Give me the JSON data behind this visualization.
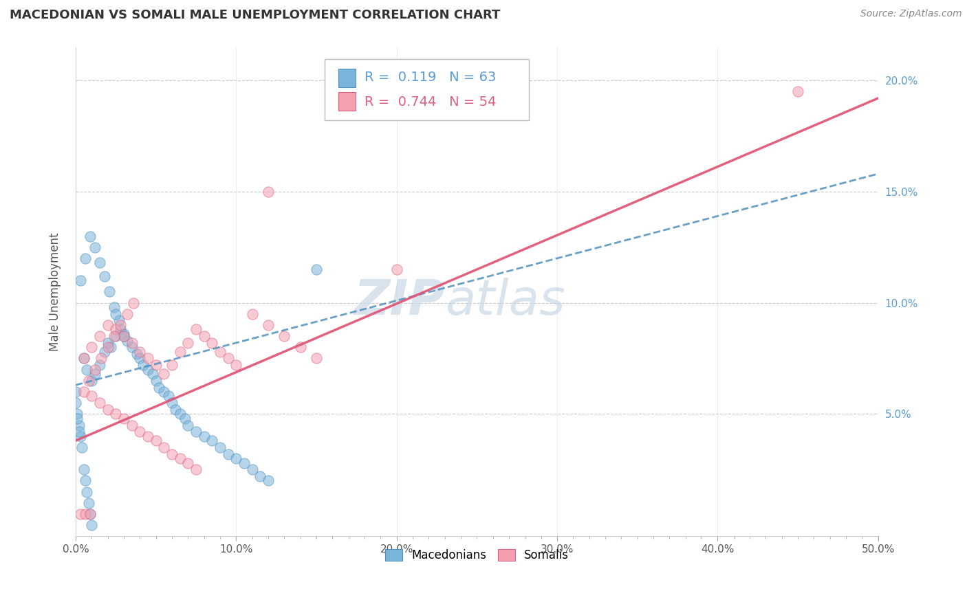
{
  "title": "MACEDONIAN VS SOMALI MALE UNEMPLOYMENT CORRELATION CHART",
  "source": "Source: ZipAtlas.com",
  "ylabel": "Male Unemployment",
  "xlim": [
    0.0,
    0.5
  ],
  "ylim": [
    -0.005,
    0.215
  ],
  "xtick_labels": [
    "0.0%",
    "",
    "",
    "",
    "",
    "",
    "",
    "",
    "",
    "",
    "10.0%",
    "",
    "",
    "",
    "",
    "",
    "",
    "",
    "",
    "",
    "20.0%",
    "",
    "",
    "",
    "",
    "",
    "",
    "",
    "",
    "",
    "30.0%",
    "",
    "",
    "",
    "",
    "",
    "",
    "",
    "",
    "",
    "40.0%",
    "",
    "",
    "",
    "",
    "",
    "",
    "",
    "",
    "",
    "50.0%"
  ],
  "xtick_values": [
    0.0,
    0.01,
    0.02,
    0.03,
    0.04,
    0.05,
    0.06,
    0.07,
    0.08,
    0.09,
    0.1,
    0.11,
    0.12,
    0.13,
    0.14,
    0.15,
    0.16,
    0.17,
    0.18,
    0.19,
    0.2,
    0.21,
    0.22,
    0.23,
    0.24,
    0.25,
    0.26,
    0.27,
    0.28,
    0.29,
    0.3,
    0.31,
    0.32,
    0.33,
    0.34,
    0.35,
    0.36,
    0.37,
    0.38,
    0.39,
    0.4,
    0.41,
    0.42,
    0.43,
    0.44,
    0.45,
    0.46,
    0.47,
    0.48,
    0.49,
    0.5
  ],
  "xtick_major_labels": [
    "0.0%",
    "10.0%",
    "20.0%",
    "30.0%",
    "40.0%",
    "50.0%"
  ],
  "xtick_major_values": [
    0.0,
    0.1,
    0.2,
    0.3,
    0.4,
    0.5
  ],
  "ytick_labels": [
    "5.0%",
    "10.0%",
    "15.0%",
    "20.0%"
  ],
  "ytick_values": [
    0.05,
    0.1,
    0.15,
    0.2
  ],
  "macedonian_color": "#7ab4db",
  "somali_color": "#f4a0b0",
  "macedonian_edge_color": "#5090bb",
  "somali_edge_color": "#e06080",
  "watermark_zip": "ZIP",
  "watermark_atlas": "atlas",
  "legend_r_macedonian": "0.119",
  "legend_n_macedonian": "63",
  "legend_r_somali": "0.744",
  "legend_n_somali": "54",
  "mac_trend_x0": 0.0,
  "mac_trend_x1": 0.5,
  "mac_trend_y0": 0.063,
  "mac_trend_y1": 0.158,
  "som_trend_x0": 0.0,
  "som_trend_x1": 0.5,
  "som_trend_y0": 0.038,
  "som_trend_y1": 0.192,
  "grid_color": "#bbbbbb",
  "scatter_size": 120,
  "scatter_alpha": 0.55,
  "macedonian_x": [
    0.005,
    0.007,
    0.01,
    0.012,
    0.015,
    0.018,
    0.02,
    0.022,
    0.025,
    0.028,
    0.03,
    0.032,
    0.035,
    0.038,
    0.04,
    0.042,
    0.045,
    0.048,
    0.05,
    0.052,
    0.055,
    0.058,
    0.06,
    0.062,
    0.065,
    0.068,
    0.07,
    0.075,
    0.08,
    0.085,
    0.09,
    0.095,
    0.1,
    0.105,
    0.11,
    0.115,
    0.12,
    0.003,
    0.006,
    0.009,
    0.012,
    0.015,
    0.018,
    0.021,
    0.024,
    0.027,
    0.03,
    0.001,
    0.002,
    0.003,
    0.004,
    0.005,
    0.006,
    0.007,
    0.008,
    0.009,
    0.01,
    0.0,
    0.0,
    0.001,
    0.002,
    0.15,
    0.025
  ],
  "macedonian_y": [
    0.075,
    0.07,
    0.065,
    0.068,
    0.072,
    0.078,
    0.082,
    0.08,
    0.085,
    0.088,
    0.086,
    0.083,
    0.08,
    0.077,
    0.075,
    0.072,
    0.07,
    0.068,
    0.065,
    0.062,
    0.06,
    0.058,
    0.055,
    0.052,
    0.05,
    0.048,
    0.045,
    0.042,
    0.04,
    0.038,
    0.035,
    0.032,
    0.03,
    0.028,
    0.025,
    0.022,
    0.02,
    0.11,
    0.12,
    0.13,
    0.125,
    0.118,
    0.112,
    0.105,
    0.098,
    0.092,
    0.085,
    0.05,
    0.045,
    0.04,
    0.035,
    0.025,
    0.02,
    0.015,
    0.01,
    0.005,
    0.0,
    0.06,
    0.055,
    0.048,
    0.042,
    0.115,
    0.095
  ],
  "somali_x": [
    0.005,
    0.01,
    0.015,
    0.02,
    0.025,
    0.03,
    0.035,
    0.04,
    0.045,
    0.05,
    0.055,
    0.06,
    0.065,
    0.07,
    0.075,
    0.08,
    0.085,
    0.09,
    0.095,
    0.1,
    0.11,
    0.12,
    0.13,
    0.14,
    0.15,
    0.005,
    0.01,
    0.015,
    0.02,
    0.025,
    0.03,
    0.035,
    0.04,
    0.045,
    0.05,
    0.055,
    0.06,
    0.065,
    0.07,
    0.075,
    0.2,
    0.45,
    0.12,
    0.008,
    0.012,
    0.016,
    0.02,
    0.024,
    0.028,
    0.032,
    0.036,
    0.003,
    0.006,
    0.009
  ],
  "somali_y": [
    0.075,
    0.08,
    0.085,
    0.09,
    0.088,
    0.085,
    0.082,
    0.078,
    0.075,
    0.072,
    0.068,
    0.072,
    0.078,
    0.082,
    0.088,
    0.085,
    0.082,
    0.078,
    0.075,
    0.072,
    0.095,
    0.09,
    0.085,
    0.08,
    0.075,
    0.06,
    0.058,
    0.055,
    0.052,
    0.05,
    0.048,
    0.045,
    0.042,
    0.04,
    0.038,
    0.035,
    0.032,
    0.03,
    0.028,
    0.025,
    0.115,
    0.195,
    0.15,
    0.065,
    0.07,
    0.075,
    0.08,
    0.085,
    0.09,
    0.095,
    0.1,
    0.005,
    0.005,
    0.005
  ]
}
